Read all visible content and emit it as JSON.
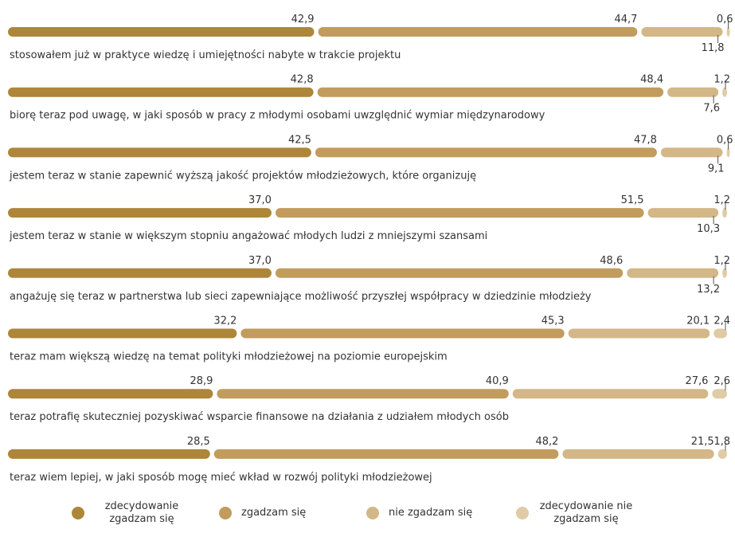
{
  "chart_data": {
    "type": "stacked-bar-horizontal",
    "categories": [
      "stosowałem już w praktyce wiedzę i umiejętności nabyte w trakcie projektu",
      "biorę teraz pod uwagę, w jaki sposób w pracy z młodymi osobami uwzględnić wymiar międzynarodowy",
      "jestem teraz w stanie zapewnić wyższą jakość projektów młodzieżowych, które organizuję",
      "jestem teraz w stanie w większym stopniu angażować młodych ludzi z mniejszymi szansami",
      "angażuję się teraz w partnerstwa lub sieci zapewniające możliwość przyszłej współpracy w dziedzinie młodzieży",
      "teraz mam większą wiedzę na temat polityki młodzieżowej na poziomie europejskim",
      "teraz potrafię skuteczniej pozyskiwać wsparcie finansowe na działania z udziałem młodych osób",
      "teraz wiem lepiej, w jaki sposób mogę mieć wkład w rozwój polityki młodzieżowej"
    ],
    "xlim": [
      0,
      100
    ],
    "series": [
      {
        "name": "zdecydowanie zgadzam się",
        "color": "#ae8639",
        "values": [
          42.9,
          42.8,
          42.5,
          37.0,
          37.0,
          32.2,
          28.9,
          28.5
        ],
        "value_labels": [
          "42,9",
          "42,8",
          "42,5",
          "37,0",
          "37,0",
          "32,2",
          "28,9",
          "28,5"
        ]
      },
      {
        "name": "zgadzam się",
        "color": "#c19c5c",
        "values": [
          44.7,
          48.4,
          47.8,
          51.5,
          48.6,
          45.3,
          40.9,
          48.2
        ],
        "value_labels": [
          "44,7",
          "48,4",
          "47,8",
          "51,5",
          "48,6",
          "45,3",
          "40,9",
          "48,2"
        ]
      },
      {
        "name": "nie zgadzam się",
        "color": "#d3b787",
        "values": [
          11.8,
          7.6,
          9.1,
          10.3,
          13.2,
          20.1,
          27.6,
          21.5
        ],
        "value_labels": [
          "11,8",
          "7,6",
          "9,1",
          "10,3",
          "13,2",
          "20,1",
          "27,6",
          "21,5"
        ]
      },
      {
        "name": "zdecydowanie nie zgadzam się",
        "color": "#dfcba6",
        "values": [
          0.6,
          1.2,
          0.6,
          1.2,
          1.2,
          2.4,
          2.6,
          1.8
        ],
        "value_labels": [
          "0,6",
          "1,2",
          "0,6",
          "1,2",
          "1,2",
          "2,4",
          "2,6",
          "1,8"
        ]
      }
    ]
  }
}
